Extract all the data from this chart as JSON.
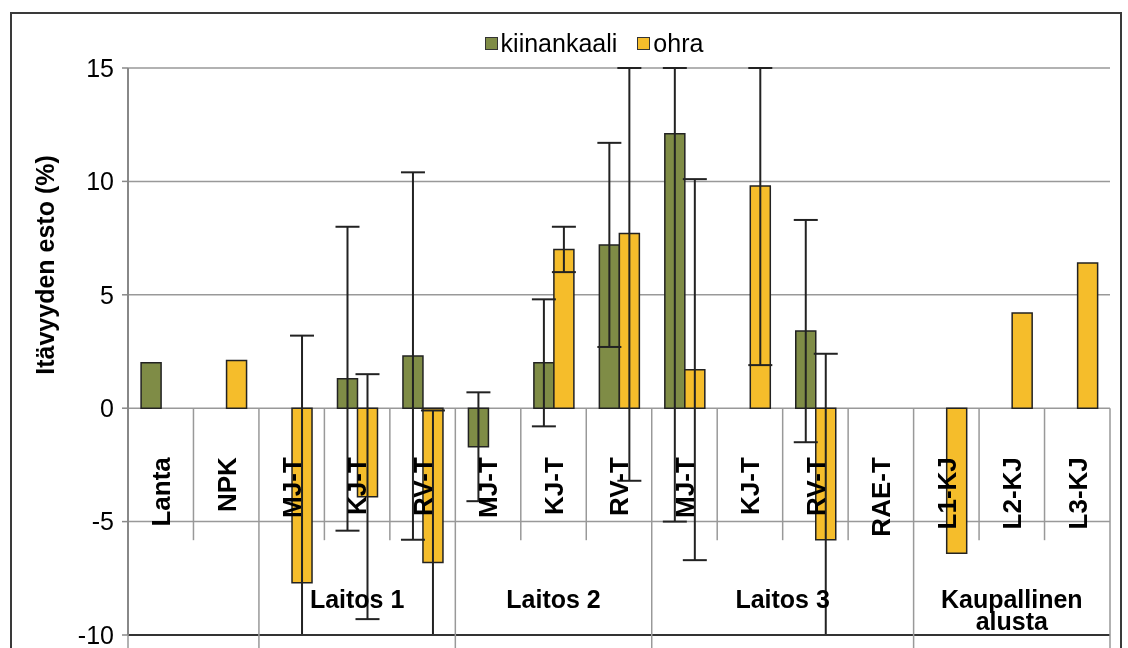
{
  "chart_data": {
    "type": "bar",
    "ylabel": "Itävyyden esto (%)",
    "categories": [
      "Lanta",
      "NPK",
      "MJ-T",
      "KJ-T",
      "RV-T",
      "MJ-T",
      "KJ-T",
      "RV-T",
      "MJ-T",
      "KJ-T",
      "RV-T",
      "RAE-T",
      "L1-KJ",
      "L2-KJ",
      "L3-KJ"
    ],
    "series": [
      {
        "name": "kiinankaali",
        "color": "#7f8c46",
        "values": [
          2.0,
          null,
          null,
          1.3,
          2.3,
          -1.7,
          2.0,
          7.2,
          12.1,
          null,
          3.4,
          null,
          null,
          null,
          null
        ],
        "errors": [
          null,
          null,
          null,
          6.7,
          8.1,
          2.4,
          2.8,
          4.5,
          [
            -5.0,
            15
          ],
          null,
          4.9,
          null,
          null,
          null,
          null
        ]
      },
      {
        "name": "ohra",
        "color": "#f5bd2b",
        "values": [
          null,
          2.1,
          -7.7,
          -3.9,
          -6.8,
          null,
          7.0,
          7.7,
          1.7,
          9.8,
          -5.8,
          null,
          -6.4,
          4.2,
          6.4
        ],
        "errors": [
          null,
          null,
          [
            -10,
            3.2
          ],
          5.4,
          [
            -10,
            -0.1
          ],
          null,
          1.0,
          [
            -3.2,
            15
          ],
          8.4,
          [
            1.9,
            15
          ],
          [
            -10,
            2.4
          ],
          null,
          null,
          null,
          null
        ]
      }
    ],
    "ylim": [
      -10,
      15
    ],
    "yticks": [
      -10,
      -5,
      0,
      5,
      10,
      15
    ],
    "grid": "y",
    "legend": "top",
    "annotations": [
      "Laitos 1",
      "Laitos 2",
      "Laitos 3",
      "Kaupallinen alusta"
    ]
  }
}
